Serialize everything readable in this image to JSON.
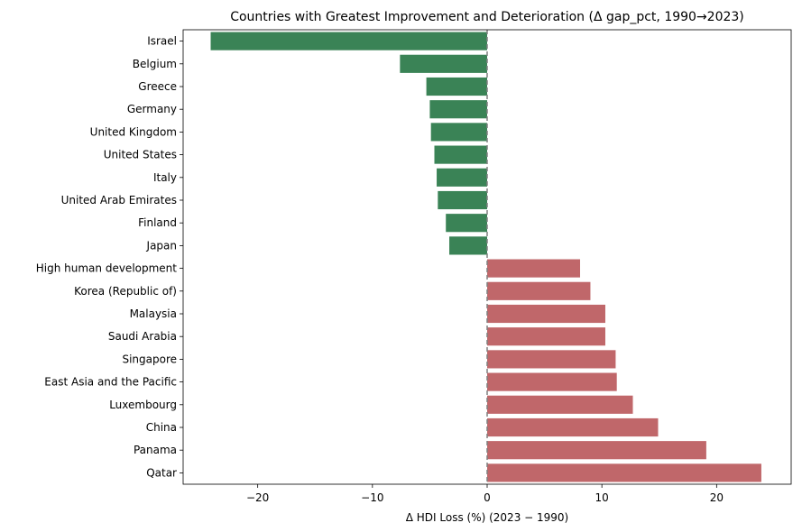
{
  "chart_data": {
    "type": "bar",
    "orientation": "horizontal",
    "title": "Countries with Greatest Improvement and Deterioration (Δ gap_pct, 1990→2023)",
    "xlabel": "Δ HDI Loss (%) (2023 − 1990)",
    "ylabel": "",
    "xlim": [
      -26.5,
      26.5
    ],
    "xticks": [
      -20,
      -10,
      0,
      10,
      20
    ],
    "xtick_labels": [
      "−20",
      "−10",
      "0",
      "10",
      "20"
    ],
    "reference_line": {
      "x": 0,
      "style": "dashed",
      "color": "#808080"
    },
    "grid": false,
    "colors": {
      "improvement": "#3a8356",
      "deterioration": "#c0676a"
    },
    "categories": [
      "Israel",
      "Belgium",
      "Greece",
      "Germany",
      "United Kingdom",
      "United States",
      "Italy",
      "United Arab Emirates",
      "Finland",
      "Japan",
      "High human development",
      "Korea (Republic of)",
      "Malaysia",
      "Saudi Arabia",
      "Singapore",
      "East Asia and the Pacific",
      "Luxembourg",
      "China",
      "Panama",
      "Qatar"
    ],
    "values": [
      -24.1,
      -7.6,
      -5.3,
      -5.0,
      -4.9,
      -4.6,
      -4.4,
      -4.3,
      -3.6,
      -3.3,
      8.1,
      9.0,
      10.3,
      10.3,
      11.2,
      11.3,
      12.7,
      14.9,
      19.1,
      23.9
    ]
  }
}
